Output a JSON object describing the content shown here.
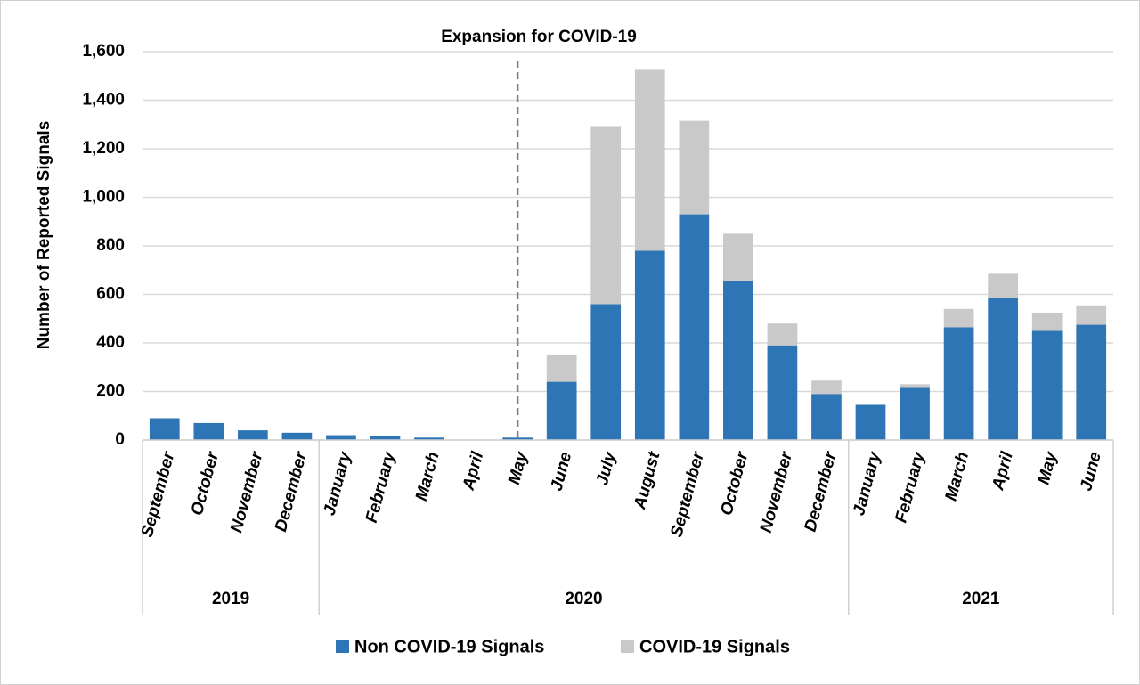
{
  "chart_data": {
    "type": "stacked_bar",
    "y_label": "Number of Reported Signals",
    "annotation": {
      "text": "Expansion for COVID-19",
      "x": 8.5
    },
    "groups": [
      {
        "label": "2019",
        "categories": [
          "September",
          "October",
          "November",
          "December"
        ]
      },
      {
        "label": "2020",
        "categories": [
          "January",
          "February",
          "March",
          "April",
          "May",
          "June",
          "July",
          "August",
          "September",
          "October",
          "November",
          "December"
        ]
      },
      {
        "label": "2021",
        "categories": [
          "January",
          "February",
          "March",
          "April",
          "May",
          "June"
        ]
      }
    ],
    "series": [
      {
        "name": "Non COVID-19 Signals",
        "color": "#2e75b6",
        "values": [
          90,
          70,
          40,
          30,
          20,
          15,
          10,
          0,
          10,
          240,
          560,
          780,
          930,
          655,
          390,
          190,
          145,
          215,
          465,
          585,
          450,
          475
        ]
      },
      {
        "name": "COVID-19 Signals",
        "color": "#c9c9c9",
        "values": [
          0,
          0,
          0,
          0,
          0,
          0,
          0,
          0,
          0,
          110,
          730,
          745,
          385,
          195,
          90,
          55,
          0,
          15,
          75,
          100,
          75,
          80
        ]
      }
    ],
    "ylim": [
      0,
      1600
    ],
    "yticks": [
      0,
      200,
      400,
      600,
      800,
      {
        "value": 1000,
        "label": "1,000"
      },
      {
        "value": 1200,
        "label": "1,200"
      },
      {
        "value": 1400,
        "label": "1,400"
      },
      {
        "value": 1600,
        "label": "1,600"
      }
    ],
    "grid": true
  }
}
